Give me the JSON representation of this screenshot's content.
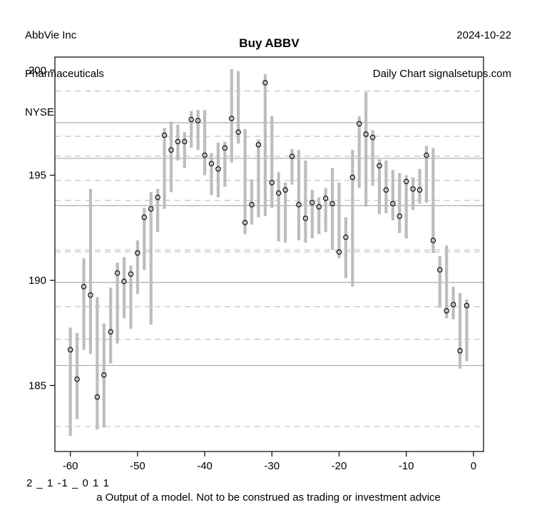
{
  "header": {
    "company": "AbbVie Inc",
    "sector": "Pharmaceuticals",
    "exchange": "NYSE",
    "date": "2024-10-22",
    "source_line": "Daily Chart signalsetups.com"
  },
  "title": "Buy ABBV",
  "footer": {
    "signal_code": "2 _ 1 -1 _ 0 1 1",
    "disclaimer": "a Output of a model. Not to be construed as trading or investment advice"
  },
  "chart_data": {
    "type": "scatter",
    "subtype": "range-bars-with-points",
    "title": "Buy ABBV",
    "xlabel": "",
    "ylabel": "",
    "xlim": [
      -62.3,
      1.5
    ],
    "ylim": [
      181.86,
      200.62
    ],
    "x_ticks": [
      -60,
      -50,
      -40,
      -30,
      -20,
      -10,
      0
    ],
    "y_ticks": [
      185,
      190,
      195,
      200
    ],
    "grid_solid_levels": [
      197.5,
      195.8,
      193.55,
      189.9,
      185.95
    ],
    "grid_dashed_levels": [
      199.0,
      196.85,
      195.9,
      194.75,
      193.8,
      191.45,
      191.36,
      188.75,
      187.2,
      183.05
    ],
    "days": [
      -60,
      -59,
      -58,
      -57,
      -56,
      -55,
      -54,
      -53,
      -52,
      -51,
      -50,
      -49,
      -48,
      -47,
      -46,
      -45,
      -44,
      -43,
      -42,
      -41,
      -40,
      -39,
      -38,
      -37,
      -36,
      -35,
      -34,
      -33,
      -32,
      -31,
      -30,
      -29,
      -28,
      -27,
      -26,
      -25,
      -24,
      -23,
      -22,
      -21,
      -20,
      -19,
      -18,
      -17,
      -16,
      -15,
      -14,
      -13,
      -12,
      -11,
      -10,
      -9,
      -8,
      -7,
      -6,
      -5,
      -4,
      -3,
      -2,
      -1
    ],
    "points": [
      186.7,
      185.3,
      189.7,
      189.3,
      184.45,
      185.5,
      187.55,
      190.35,
      189.95,
      190.3,
      191.3,
      193.0,
      193.4,
      193.95,
      196.9,
      196.2,
      196.6,
      196.6,
      197.65,
      197.6,
      195.95,
      195.55,
      195.3,
      196.3,
      197.7,
      197.05,
      192.75,
      193.6,
      196.45,
      199.4,
      194.65,
      194.15,
      194.3,
      195.9,
      193.6,
      192.95,
      193.7,
      193.5,
      193.9,
      193.65,
      191.35,
      192.05,
      194.9,
      197.45,
      196.95,
      196.8,
      195.45,
      194.3,
      193.65,
      193.05,
      194.7,
      194.35,
      194.3,
      195.95,
      191.9,
      190.5,
      188.55,
      188.85,
      186.65,
      188.8
    ],
    "low": [
      182.6,
      183.4,
      186.7,
      186.5,
      182.9,
      183.0,
      186.05,
      187.0,
      188.2,
      187.7,
      189.35,
      190.5,
      187.9,
      192.3,
      193.4,
      194.2,
      195.7,
      195.35,
      196.3,
      196.2,
      195.0,
      194.05,
      193.95,
      194.45,
      195.6,
      196.5,
      192.2,
      192.65,
      193.0,
      193.05,
      193.45,
      191.85,
      191.8,
      194.55,
      191.9,
      191.8,
      192.0,
      192.2,
      192.3,
      191.45,
      191.05,
      190.1,
      189.7,
      194.4,
      193.5,
      194.5,
      193.15,
      193.2,
      192.85,
      192.25,
      192.0,
      193.35,
      193.65,
      193.7,
      191.3,
      188.7,
      188.2,
      188.15,
      185.8,
      186.15
    ],
    "high": [
      187.75,
      187.5,
      191.05,
      194.35,
      189.2,
      187.95,
      189.65,
      190.85,
      191.1,
      190.7,
      191.9,
      193.45,
      194.2,
      194.35,
      197.25,
      197.55,
      197.4,
      197.05,
      198.05,
      198.1,
      198.1,
      196.05,
      196.55,
      196.6,
      200.05,
      199.95,
      197.2,
      194.8,
      196.7,
      199.8,
      197.8,
      195.15,
      194.65,
      196.25,
      196.2,
      195.7,
      194.3,
      193.95,
      194.4,
      195.35,
      194.65,
      193.0,
      196.2,
      197.8,
      198.95,
      197.15,
      195.75,
      195.7,
      195.25,
      195.1,
      195.0,
      194.9,
      195.3,
      196.4,
      196.3,
      191.15,
      191.65,
      189.7,
      189.4,
      189.1
    ],
    "legend": null,
    "grid": "horizontal-only",
    "colors": {
      "bar": "#bdbdbd",
      "grid_solid": "#ababab",
      "grid_dashed": "#c3c3c3",
      "point_stroke": "#000000",
      "axis": "#000000",
      "background": "#ffffff",
      "text": "#000000"
    }
  }
}
